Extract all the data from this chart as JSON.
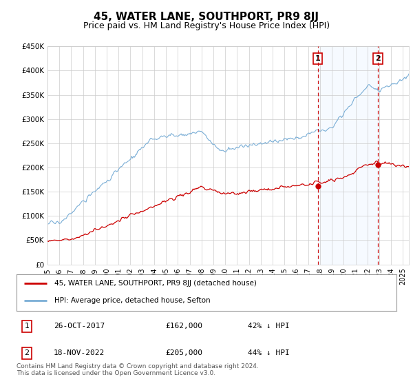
{
  "title": "45, WATER LANE, SOUTHPORT, PR9 8JJ",
  "subtitle": "Price paid vs. HM Land Registry's House Price Index (HPI)",
  "ylabel_ticks": [
    "£0",
    "£50K",
    "£100K",
    "£150K",
    "£200K",
    "£250K",
    "£300K",
    "£350K",
    "£400K",
    "£450K"
  ],
  "ytick_values": [
    0,
    50000,
    100000,
    150000,
    200000,
    250000,
    300000,
    350000,
    400000,
    450000
  ],
  "ylim": [
    0,
    450000
  ],
  "xlim_start": 1995.0,
  "xlim_end": 2025.5,
  "sale1_x": 2017.82,
  "sale1_y": 162000,
  "sale1_label": "1",
  "sale2_x": 2022.88,
  "sale2_y": 205000,
  "sale2_label": "2",
  "line_color_property": "#cc0000",
  "line_color_hpi": "#7aaed6",
  "vline_color": "#cc0000",
  "shade_color": "#ddeeff",
  "background_color": "#f0f4ff",
  "plot_bg_color": "#ffffff",
  "legend_line1": "45, WATER LANE, SOUTHPORT, PR9 8JJ (detached house)",
  "legend_line2": "HPI: Average price, detached house, Sefton",
  "table_row1": [
    "1",
    "26-OCT-2017",
    "£162,000",
    "42% ↓ HPI"
  ],
  "table_row2": [
    "2",
    "18-NOV-2022",
    "£205,000",
    "44% ↓ HPI"
  ],
  "footnote": "Contains HM Land Registry data © Crown copyright and database right 2024.\nThis data is licensed under the Open Government Licence v3.0.",
  "title_fontsize": 11,
  "subtitle_fontsize": 9
}
